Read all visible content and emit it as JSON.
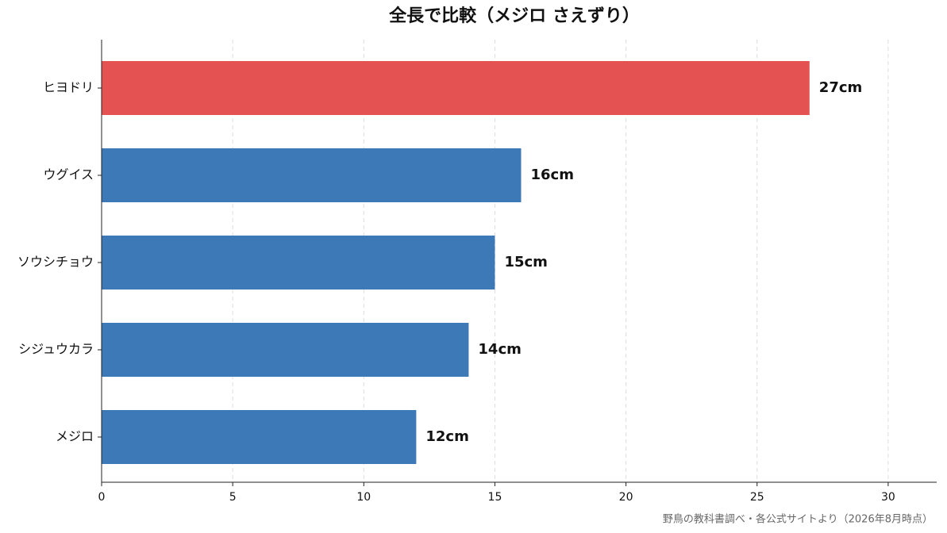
{
  "chart_data": {
    "type": "barh",
    "title": "全長で比較（メジロ さえずり）",
    "categories": [
      "ヒヨドリ",
      "ウグイス",
      "ソウシチョウ",
      "シジュウカラ",
      "メジロ"
    ],
    "values": [
      27,
      16,
      15,
      14,
      12
    ],
    "value_labels": [
      "27cm",
      "16cm",
      "15cm",
      "14cm",
      "12cm"
    ],
    "colors": [
      "#e45252",
      "#3d79b6",
      "#3d79b6",
      "#3d79b6",
      "#3d79b6"
    ],
    "xlim": [
      0,
      31.85
    ],
    "xticks": [
      0,
      5,
      10,
      15,
      20,
      25,
      30
    ],
    "grid": true,
    "source": "野鳥の教科書調べ・各公式サイトより（2026年8月時点）"
  }
}
